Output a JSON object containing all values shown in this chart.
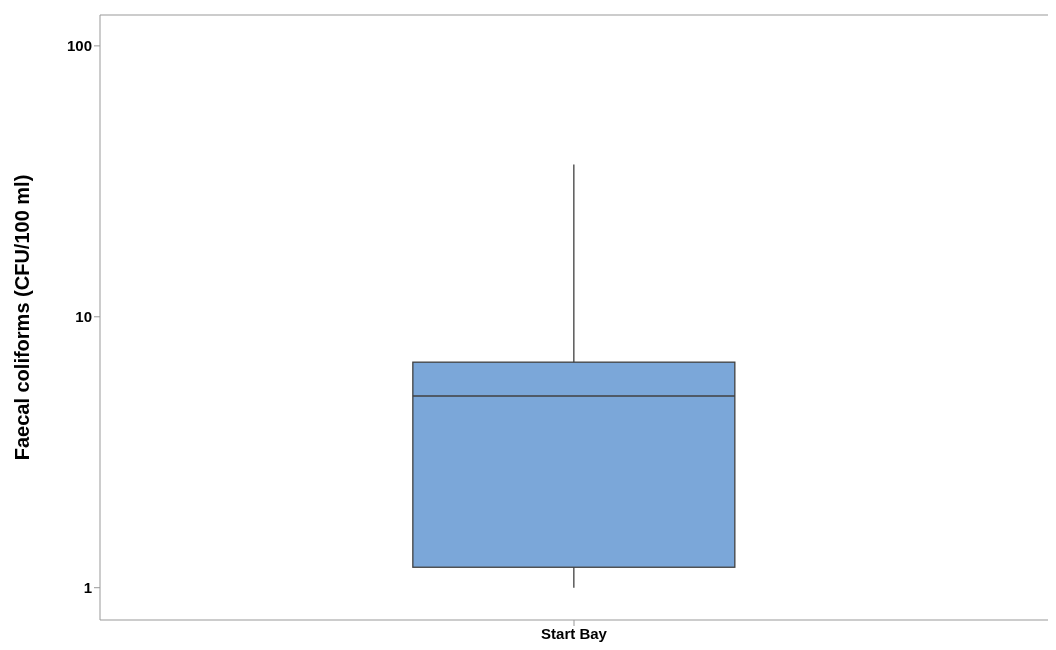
{
  "chart_data": {
    "type": "box",
    "categories": [
      "Start Bay"
    ],
    "ylabel": "Faecal coliforms (CFU/100 ml)",
    "color": "#7ba7d9",
    "log": true,
    "ylim": [
      0.76,
      130
    ],
    "yticks": [
      1,
      10,
      100
    ],
    "boxes": [
      {
        "low": 1.0,
        "q1": 1.19,
        "median": 5.1,
        "q3": 6.8,
        "high": 36.5
      }
    ]
  }
}
